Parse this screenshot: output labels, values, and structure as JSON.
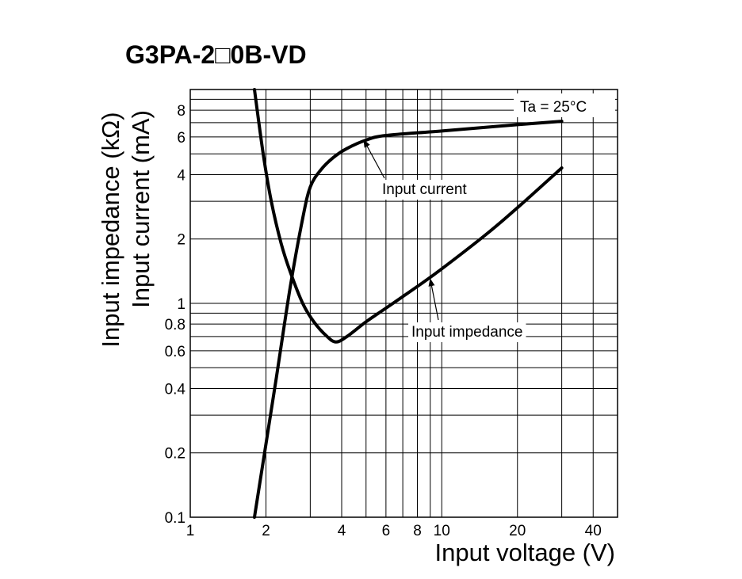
{
  "chart_data": {
    "type": "line",
    "title": "G3PA-2□0B-VD",
    "xlabel": "Input voltage (V)",
    "ylabel_lines": [
      "Input impedance (kΩ)",
      "Input current (mA)"
    ],
    "condition": "Ta = 25°C",
    "x_scale": "log",
    "y_scale": "log",
    "xlim": [
      1,
      50
    ],
    "ylim": [
      0.1,
      10
    ],
    "grid": true,
    "x_ticks": [
      1,
      2,
      4,
      6,
      8,
      10,
      20,
      40
    ],
    "y_ticks": [
      0.1,
      0.2,
      0.4,
      0.6,
      0.8,
      1,
      2,
      4,
      6,
      8
    ],
    "series": [
      {
        "name": "Input current",
        "x": [
          1.8,
          1.9,
          2.0,
          2.2,
          2.5,
          2.8,
          3.0,
          3.3,
          3.7,
          4.2,
          5.0,
          6.0,
          10,
          20,
          30
        ],
        "y": [
          0.1,
          0.15,
          0.22,
          0.45,
          1.2,
          2.5,
          3.5,
          4.2,
          4.8,
          5.3,
          5.8,
          6.1,
          6.4,
          6.85,
          7.1
        ]
      },
      {
        "name": "Input impedance",
        "x": [
          1.8,
          1.95,
          2.1,
          2.3,
          2.5,
          2.8,
          3.1,
          3.5,
          3.8,
          4.2,
          5.0,
          6.0,
          8.0,
          10,
          15,
          20,
          30
        ],
        "y": [
          10,
          5.0,
          3.0,
          1.9,
          1.4,
          1.0,
          0.82,
          0.7,
          0.66,
          0.7,
          0.82,
          0.95,
          1.2,
          1.45,
          2.1,
          2.8,
          4.3
        ]
      }
    ],
    "annotations": [
      {
        "text": "Input current",
        "series": "Input current",
        "arrow_to": {
          "x": 4.9,
          "y": 5.8
        }
      },
      {
        "text": "Input impedance",
        "series": "Input impedance",
        "arrow_to": {
          "x": 9.0,
          "y": 1.3
        }
      }
    ],
    "colors": {
      "line": "#000000",
      "grid": "#000000",
      "background": "#ffffff"
    }
  }
}
